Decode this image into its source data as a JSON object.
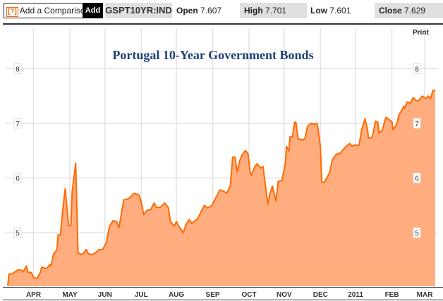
{
  "toolbar": {
    "help_icon": "[?]",
    "compare_label": "Add a Comparison",
    "add_label": "Add",
    "symbol": "GSPT10YR:IND",
    "open_label": "Open",
    "open_value": "7.607",
    "high_label": "High",
    "high_value": "7.701",
    "low_label": "Low",
    "low_value": "7.601",
    "close_label": "Close",
    "close_value": "7.629",
    "print_label": "Print"
  },
  "colors": {
    "line": "#ff6a00",
    "fill": "#ffad7f",
    "title": "#1f3f7a"
  },
  "chart_data": {
    "type": "area",
    "title": "Portugal 10-Year Government Bonds",
    "xlabel": "",
    "ylabel": "",
    "xlim": [
      0,
      365
    ],
    "ylim": [
      4.02,
      8.74
    ],
    "grid": true,
    "x_unit": "days since start (approx. 11 Mar 2010)",
    "x_ticks": [
      {
        "label": "APR",
        "x": 22
      },
      {
        "label": "MAY",
        "x": 53
      },
      {
        "label": "JUN",
        "x": 83
      },
      {
        "label": "JUL",
        "x": 114
      },
      {
        "label": "AUG",
        "x": 144
      },
      {
        "label": "SEP",
        "x": 175
      },
      {
        "label": "OCT",
        "x": 206
      },
      {
        "label": "NOV",
        "x": 236
      },
      {
        "label": "DEC",
        "x": 267
      },
      {
        "label": "2011",
        "x": 297
      },
      {
        "label": "FEB",
        "x": 328
      },
      {
        "label": "MAR",
        "x": 356
      }
    ],
    "y_ticks": [
      "5",
      "6",
      "7",
      "8"
    ],
    "points": [
      [
        0,
        4.03
      ],
      [
        1,
        4.24
      ],
      [
        4,
        4.25
      ],
      [
        8,
        4.31
      ],
      [
        11,
        4.32
      ],
      [
        13,
        4.28
      ],
      [
        16,
        4.39
      ],
      [
        17,
        4.28
      ],
      [
        20,
        4.27
      ],
      [
        22,
        4.18
      ],
      [
        25,
        4.16
      ],
      [
        28,
        4.28
      ],
      [
        29,
        4.37
      ],
      [
        33,
        4.34
      ],
      [
        36,
        4.42
      ],
      [
        37,
        4.39
      ],
      [
        39,
        4.6
      ],
      [
        42,
        4.69
      ],
      [
        43,
        4.96
      ],
      [
        45,
        4.96
      ],
      [
        47,
        5.42
      ],
      [
        49,
        5.8
      ],
      [
        52,
        5.13
      ],
      [
        54,
        5.13
      ],
      [
        55,
        5.75
      ],
      [
        58,
        6.27
      ],
      [
        60,
        4.63
      ],
      [
        63,
        4.6
      ],
      [
        65,
        4.63
      ],
      [
        67,
        4.69
      ],
      [
        69,
        4.61
      ],
      [
        72,
        4.6
      ],
      [
        75,
        4.63
      ],
      [
        78,
        4.69
      ],
      [
        81,
        4.69
      ],
      [
        84,
        4.81
      ],
      [
        87,
        5.12
      ],
      [
        90,
        5.22
      ],
      [
        93,
        5.2
      ],
      [
        95,
        5.09
      ],
      [
        99,
        5.6
      ],
      [
        102,
        5.61
      ],
      [
        104,
        5.64
      ],
      [
        108,
        5.72
      ],
      [
        112,
        5.69
      ],
      [
        114,
        5.56
      ],
      [
        116,
        5.33
      ],
      [
        119,
        5.41
      ],
      [
        122,
        5.42
      ],
      [
        125,
        5.54
      ],
      [
        127,
        5.46
      ],
      [
        130,
        5.46
      ],
      [
        134,
        5.54
      ],
      [
        137,
        5.46
      ],
      [
        139,
        5.2
      ],
      [
        142,
        5.12
      ],
      [
        144,
        5.2
      ],
      [
        146,
        5.12
      ],
      [
        150,
        5.0
      ],
      [
        152,
        5.14
      ],
      [
        155,
        5.24
      ],
      [
        157,
        5.17
      ],
      [
        160,
        5.22
      ],
      [
        162,
        5.25
      ],
      [
        165,
        5.38
      ],
      [
        168,
        5.5
      ],
      [
        170,
        5.45
      ],
      [
        174,
        5.49
      ],
      [
        179,
        5.69
      ],
      [
        181,
        5.78
      ],
      [
        185,
        5.75
      ],
      [
        187,
        5.72
      ],
      [
        190,
        5.86
      ],
      [
        192,
        6.38
      ],
      [
        194,
        6.38
      ],
      [
        196,
        6.11
      ],
      [
        198,
        6.31
      ],
      [
        200,
        6.42
      ],
      [
        203,
        6.5
      ],
      [
        205,
        6.45
      ],
      [
        207,
        6.11
      ],
      [
        208,
        6.05
      ],
      [
        211,
        6.21
      ],
      [
        213,
        6.26
      ],
      [
        216,
        6.18
      ],
      [
        218,
        6.21
      ],
      [
        220,
        5.86
      ],
      [
        222,
        5.52
      ],
      [
        224,
        5.72
      ],
      [
        226,
        5.85
      ],
      [
        229,
        5.58
      ],
      [
        231,
        5.94
      ],
      [
        234,
        5.95
      ],
      [
        237,
        6.25
      ],
      [
        238,
        6.58
      ],
      [
        240,
        6.49
      ],
      [
        241,
        6.75
      ],
      [
        243,
        6.75
      ],
      [
        245,
        7.02
      ],
      [
        246,
        7.02
      ],
      [
        248,
        6.71
      ],
      [
        250,
        6.71
      ],
      [
        252,
        6.69
      ],
      [
        254,
        6.74
      ],
      [
        256,
        6.95
      ],
      [
        259,
        7.0
      ],
      [
        262,
        6.98
      ],
      [
        264,
        7.0
      ],
      [
        265,
        6.9
      ],
      [
        267,
        6.55
      ],
      [
        268,
        5.93
      ],
      [
        270,
        5.92
      ],
      [
        272,
        5.98
      ],
      [
        275,
        6.11
      ],
      [
        277,
        6.33
      ],
      [
        280,
        6.42
      ],
      [
        282,
        6.45
      ],
      [
        284,
        6.45
      ],
      [
        286,
        6.51
      ],
      [
        289,
        6.58
      ],
      [
        292,
        6.63
      ],
      [
        294,
        6.58
      ],
      [
        296,
        6.6
      ],
      [
        299,
        6.6
      ],
      [
        300,
        6.6
      ],
      [
        302,
        6.87
      ],
      [
        305,
        7.08
      ],
      [
        307,
        6.91
      ],
      [
        308,
        6.73
      ],
      [
        311,
        6.74
      ],
      [
        312,
        6.82
      ],
      [
        314,
        7.04
      ],
      [
        316,
        7.02
      ],
      [
        317,
        6.82
      ],
      [
        320,
        6.88
      ],
      [
        322,
        7.06
      ],
      [
        323,
        7.11
      ],
      [
        326,
        7.06
      ],
      [
        328,
        7.03
      ],
      [
        329,
        6.88
      ],
      [
        332,
        6.98
      ],
      [
        334,
        7.15
      ],
      [
        337,
        7.26
      ],
      [
        338,
        7.31
      ],
      [
        339,
        7.28
      ],
      [
        341,
        7.39
      ],
      [
        344,
        7.37
      ],
      [
        346,
        7.47
      ],
      [
        349,
        7.41
      ],
      [
        351,
        7.42
      ],
      [
        354,
        7.5
      ],
      [
        357,
        7.45
      ],
      [
        359,
        7.5
      ],
      [
        361,
        7.45
      ],
      [
        363,
        7.6
      ],
      [
        365,
        7.6
      ]
    ]
  }
}
